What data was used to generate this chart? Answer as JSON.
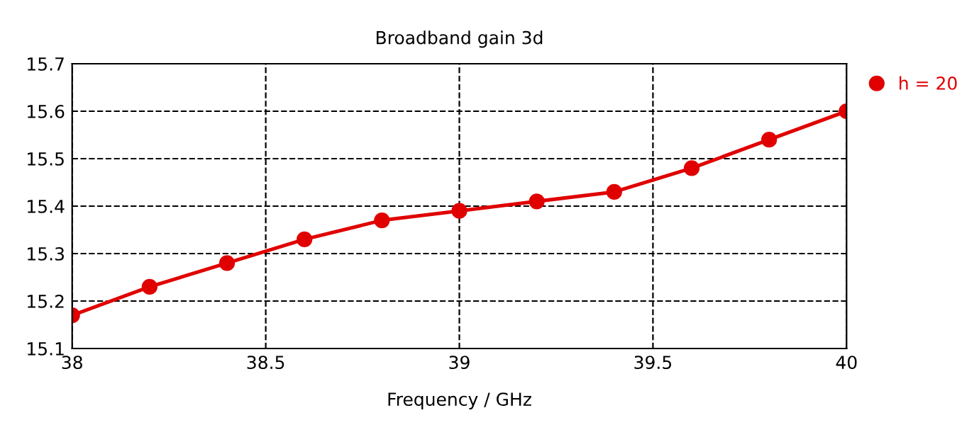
{
  "chart_data": {
    "type": "line",
    "title": "Broadband gain 3d",
    "xlabel": "Frequency / GHz",
    "x": [
      38,
      38.2,
      38.4,
      38.6,
      38.8,
      39,
      39.2,
      39.4,
      39.6,
      39.8,
      40
    ],
    "series": [
      {
        "name": "h = 20",
        "color": "#e00000",
        "values": [
          15.17,
          15.23,
          15.28,
          15.33,
          15.37,
          15.39,
          15.41,
          15.43,
          15.48,
          15.54,
          15.6
        ]
      }
    ],
    "xlim": [
      38,
      40
    ],
    "xticks": [
      38,
      38.5,
      39,
      39.5,
      40
    ],
    "ylim": [
      15.1,
      15.7
    ],
    "yticks": [
      15.1,
      15.2,
      15.3,
      15.4,
      15.5,
      15.6,
      15.7
    ],
    "grid": true,
    "legend": "top right",
    "marker": "circle",
    "line_style": "solid"
  }
}
